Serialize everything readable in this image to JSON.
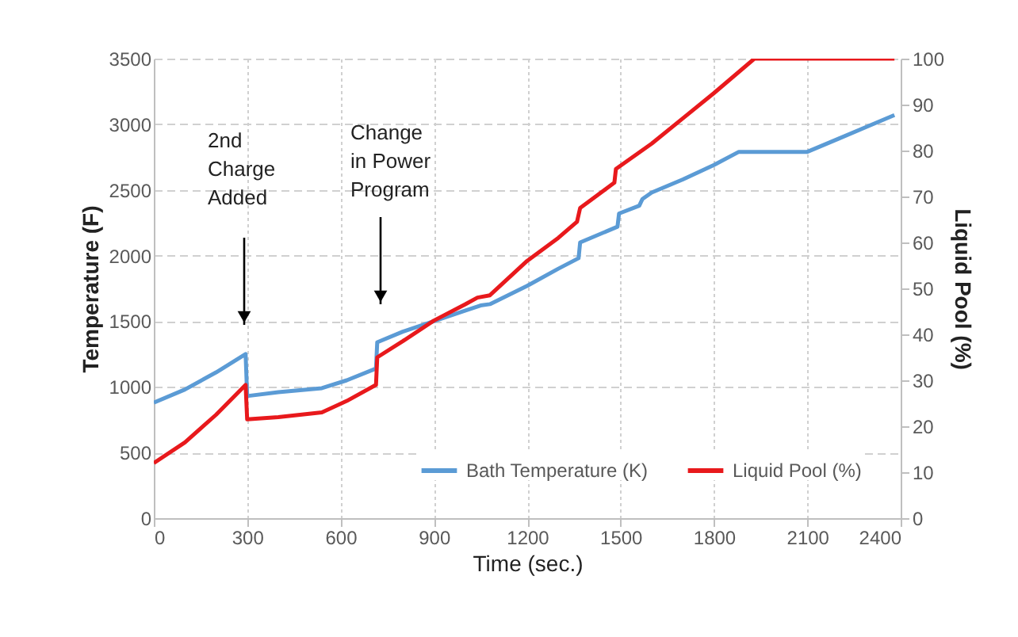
{
  "chart_data": {
    "type": "line",
    "xlabel": "Time (sec.)",
    "ylabel": "Temperature (F)",
    "y2label": "Liquid Pool (%)",
    "xlim": [
      0,
      2400
    ],
    "xticks": [
      0,
      300,
      600,
      900,
      1200,
      1500,
      1800,
      2100,
      2400
    ],
    "ylim": [
      0,
      3500
    ],
    "yticks": [
      0,
      500,
      1000,
      1500,
      2000,
      2500,
      3000,
      3500
    ],
    "y2lim": [
      0,
      100
    ],
    "y2ticks": [
      0,
      10,
      20,
      30,
      40,
      50,
      60,
      70,
      80,
      90,
      100
    ],
    "grid": true,
    "legend": "bottom right",
    "marker": "none",
    "line_style": "solid",
    "annotations": [
      "2nd Charge Added",
      "Change in Power Program"
    ],
    "series": [
      {
        "name": "Bath Temperature (K)",
        "color": "#5b9bd5",
        "x": [
          0,
          100,
          200,
          295,
          300,
          400,
          540,
          620,
          714,
          718,
          800,
          900,
          1000,
          1050,
          1080,
          1200,
          1300,
          1365,
          1370,
          1490,
          1495,
          1560,
          1570,
          1600,
          1700,
          1800,
          1880,
          2100,
          2200,
          2300,
          2380
        ],
        "values": [
          880,
          980,
          1110,
          1250,
          930,
          960,
          990,
          1050,
          1140,
          1340,
          1420,
          1500,
          1580,
          1620,
          1630,
          1770,
          1900,
          1980,
          2100,
          2220,
          2320,
          2380,
          2430,
          2480,
          2580,
          2690,
          2790,
          2790,
          2890,
          2990,
          3070
        ]
      },
      {
        "name": "Liquid Pool (%)",
        "color": "#e8191c",
        "axis": "y2",
        "x": [
          0,
          100,
          200,
          295,
          300,
          400,
          540,
          620,
          714,
          718,
          800,
          900,
          1000,
          1040,
          1080,
          1200,
          1300,
          1360,
          1370,
          1480,
          1485,
          1600,
          1700,
          1800,
          1930,
          2380
        ],
        "values": [
          12,
          16.5,
          22.5,
          29,
          21.5,
          22,
          23,
          25.5,
          29,
          35,
          38.5,
          43,
          46.5,
          48,
          48.5,
          56,
          61,
          64.5,
          67.5,
          73,
          76,
          81.5,
          87,
          92.5,
          100,
          100
        ]
      }
    ]
  }
}
